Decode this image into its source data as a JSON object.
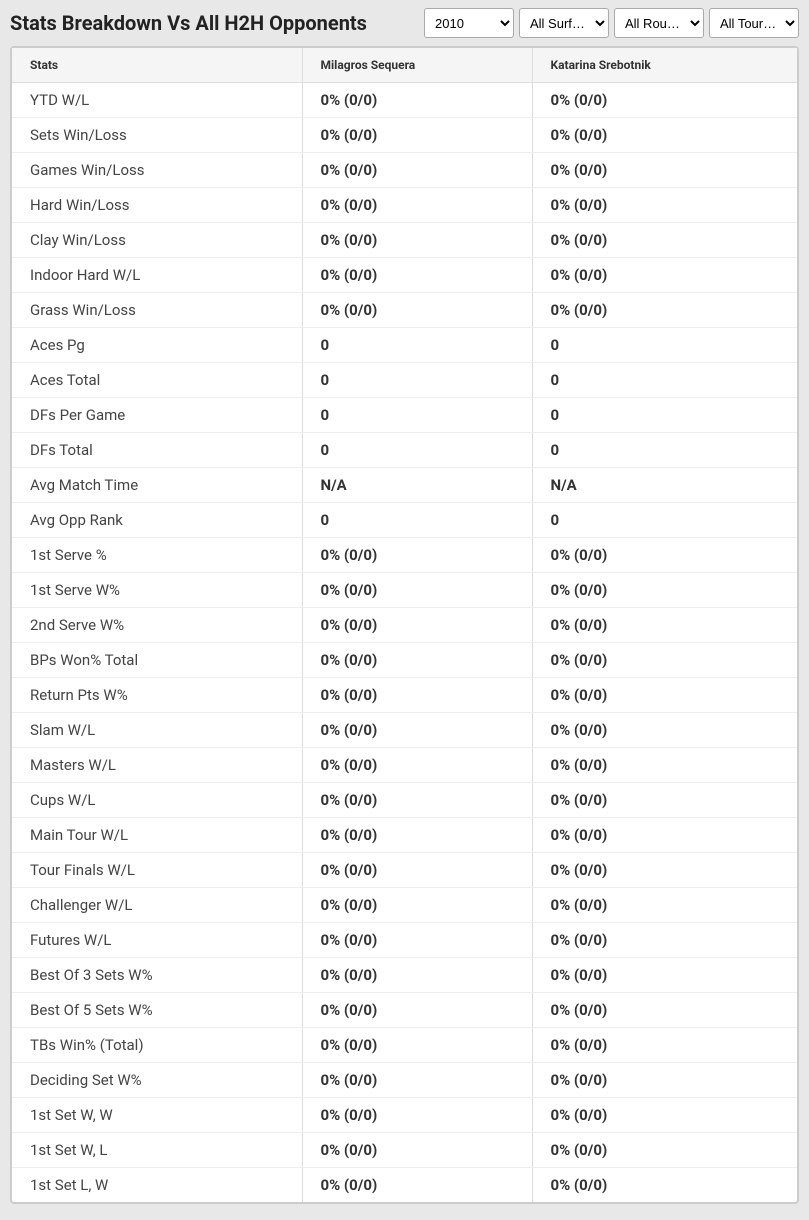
{
  "header": {
    "title": "Stats Breakdown Vs All H2H Opponents"
  },
  "filters": {
    "year": {
      "selected": "2010"
    },
    "surface": {
      "selected": "All Surf…"
    },
    "round": {
      "selected": "All Rou…"
    },
    "tour": {
      "selected": "All Tour…"
    }
  },
  "table": {
    "columns": [
      "Stats",
      "Milagros Sequera",
      "Katarina Srebotnik"
    ],
    "rows": [
      {
        "stat": "YTD W/L",
        "p1": "0% (0/0)",
        "p2": "0% (0/0)"
      },
      {
        "stat": "Sets Win/Loss",
        "p1": "0% (0/0)",
        "p2": "0% (0/0)"
      },
      {
        "stat": "Games Win/Loss",
        "p1": "0% (0/0)",
        "p2": "0% (0/0)"
      },
      {
        "stat": "Hard Win/Loss",
        "p1": "0% (0/0)",
        "p2": "0% (0/0)"
      },
      {
        "stat": "Clay Win/Loss",
        "p1": "0% (0/0)",
        "p2": "0% (0/0)"
      },
      {
        "stat": "Indoor Hard W/L",
        "p1": "0% (0/0)",
        "p2": "0% (0/0)"
      },
      {
        "stat": "Grass Win/Loss",
        "p1": "0% (0/0)",
        "p2": "0% (0/0)"
      },
      {
        "stat": "Aces Pg",
        "p1": "0",
        "p2": "0"
      },
      {
        "stat": "Aces Total",
        "p1": "0",
        "p2": "0"
      },
      {
        "stat": "DFs Per Game",
        "p1": "0",
        "p2": "0"
      },
      {
        "stat": "DFs Total",
        "p1": "0",
        "p2": "0"
      },
      {
        "stat": "Avg Match Time",
        "p1": "N/A",
        "p2": "N/A"
      },
      {
        "stat": "Avg Opp Rank",
        "p1": "0",
        "p2": "0"
      },
      {
        "stat": "1st Serve %",
        "p1": "0% (0/0)",
        "p2": "0% (0/0)"
      },
      {
        "stat": "1st Serve W%",
        "p1": "0% (0/0)",
        "p2": "0% (0/0)"
      },
      {
        "stat": "2nd Serve W%",
        "p1": "0% (0/0)",
        "p2": "0% (0/0)"
      },
      {
        "stat": "BPs Won% Total",
        "p1": "0% (0/0)",
        "p2": "0% (0/0)"
      },
      {
        "stat": "Return Pts W%",
        "p1": "0% (0/0)",
        "p2": "0% (0/0)"
      },
      {
        "stat": "Slam W/L",
        "p1": "0% (0/0)",
        "p2": "0% (0/0)"
      },
      {
        "stat": "Masters W/L",
        "p1": "0% (0/0)",
        "p2": "0% (0/0)"
      },
      {
        "stat": "Cups W/L",
        "p1": "0% (0/0)",
        "p2": "0% (0/0)"
      },
      {
        "stat": "Main Tour W/L",
        "p1": "0% (0/0)",
        "p2": "0% (0/0)"
      },
      {
        "stat": "Tour Finals W/L",
        "p1": "0% (0/0)",
        "p2": "0% (0/0)"
      },
      {
        "stat": "Challenger W/L",
        "p1": "0% (0/0)",
        "p2": "0% (0/0)"
      },
      {
        "stat": "Futures W/L",
        "p1": "0% (0/0)",
        "p2": "0% (0/0)"
      },
      {
        "stat": "Best Of 3 Sets W%",
        "p1": "0% (0/0)",
        "p2": "0% (0/0)"
      },
      {
        "stat": "Best Of 5 Sets W%",
        "p1": "0% (0/0)",
        "p2": "0% (0/0)"
      },
      {
        "stat": "TBs Win% (Total)",
        "p1": "0% (0/0)",
        "p2": "0% (0/0)"
      },
      {
        "stat": "Deciding Set W%",
        "p1": "0% (0/0)",
        "p2": "0% (0/0)"
      },
      {
        "stat": "1st Set W, W",
        "p1": "0% (0/0)",
        "p2": "0% (0/0)"
      },
      {
        "stat": "1st Set W, L",
        "p1": "0% (0/0)",
        "p2": "0% (0/0)"
      },
      {
        "stat": "1st Set L, W",
        "p1": "0% (0/0)",
        "p2": "0% (0/0)"
      }
    ]
  }
}
